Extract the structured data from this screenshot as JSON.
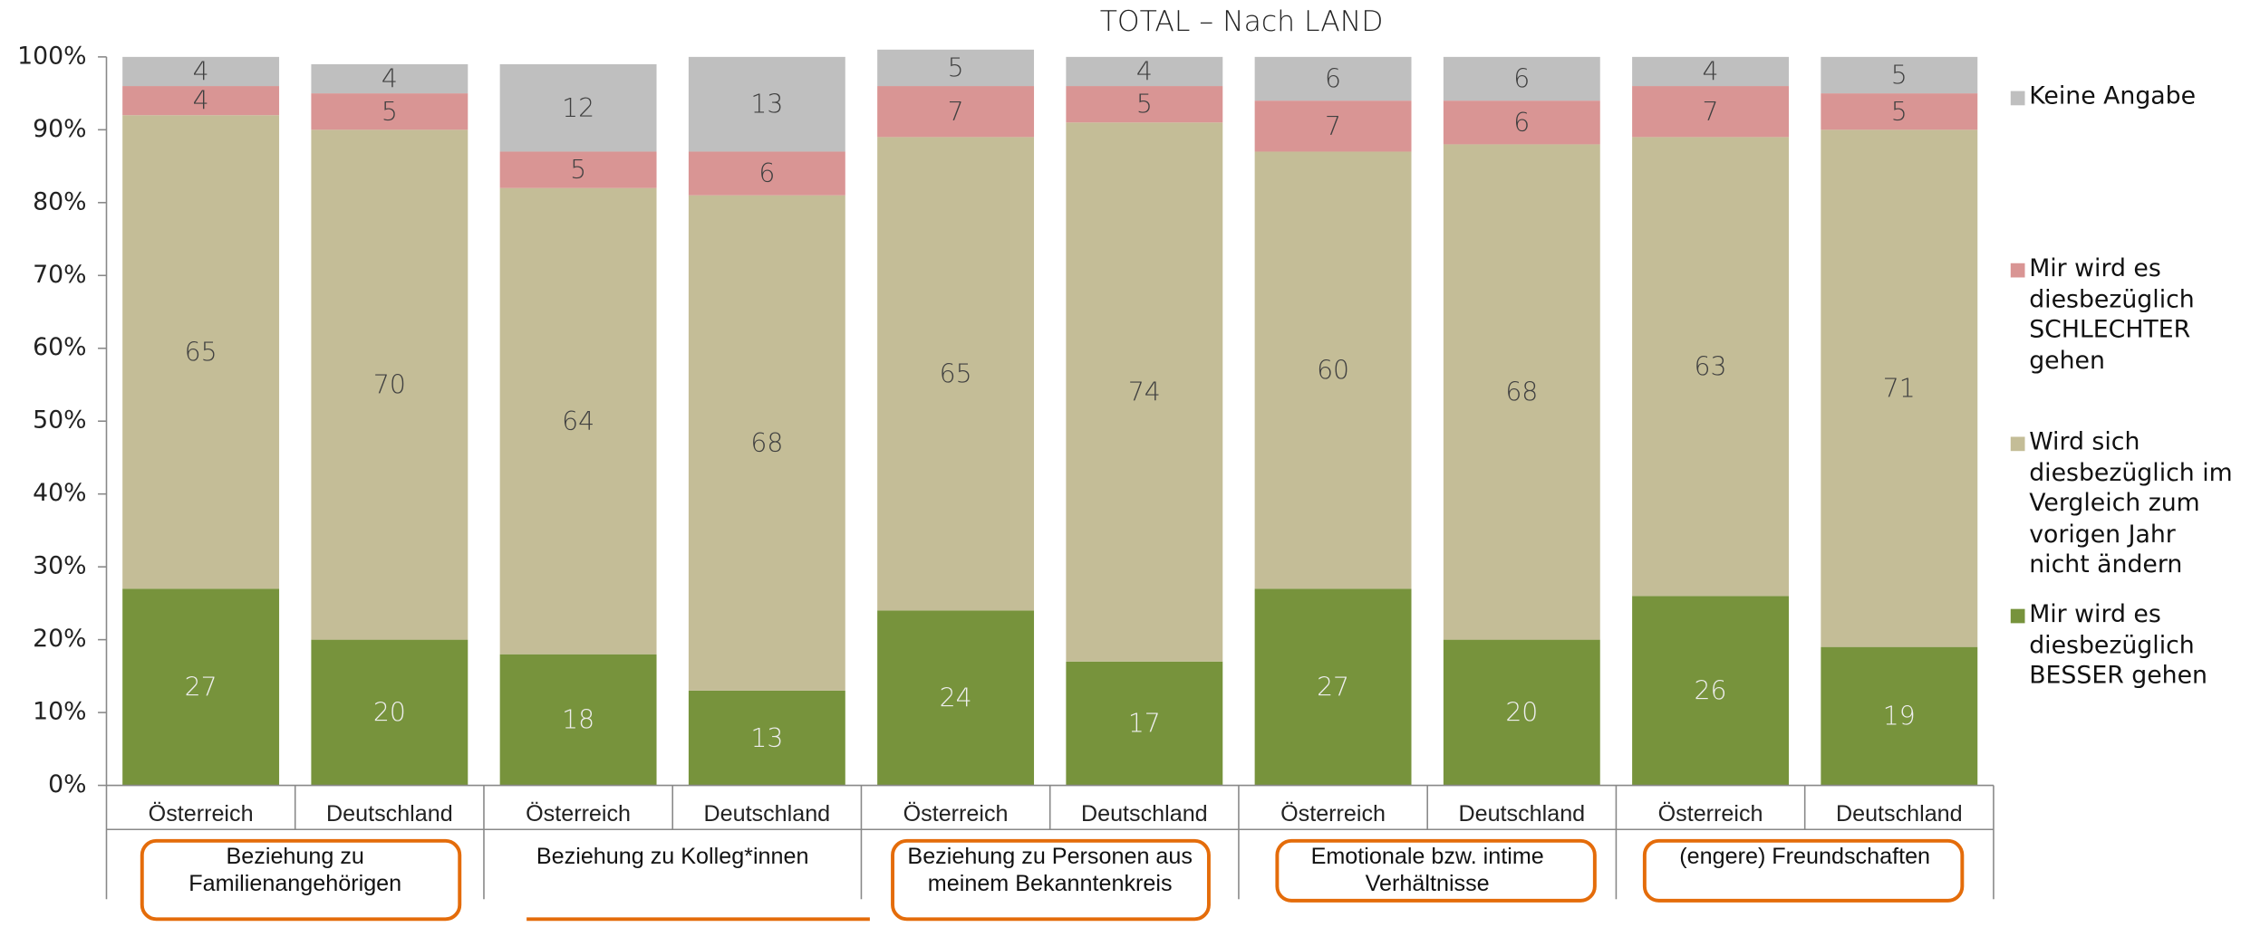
{
  "chart_data": {
    "type": "stacked_bar",
    "title": "TOTAL – Nach LAND",
    "categories": [
      "Österreich",
      "Deutschland",
      "Österreich",
      "Deutschland",
      "Österreich",
      "Deutschland",
      "Österreich",
      "Deutschland",
      "Österreich",
      "Deutschland"
    ],
    "groups": [
      "Beziehung zu Familienangehörigen",
      "Beziehung zu Kolleg*innen",
      "Beziehung zu Personen aus meinem Bekanntenkreis",
      "Emotionale bzw. intime Verhältnisse",
      "(engere) Freundschaften"
    ],
    "series": [
      {
        "name": "Mir wird es diesbezüglich BESSER gehen",
        "color": "#77933c",
        "values": [
          27,
          20,
          18,
          13,
          24,
          17,
          27,
          20,
          26,
          19
        ]
      },
      {
        "name": "Wird sich diesbezüglich im Vergleich zum vorigen Jahr nicht ändern",
        "color": "#c4bd97",
        "values": [
          65,
          70,
          64,
          68,
          65,
          74,
          60,
          68,
          63,
          71
        ]
      },
      {
        "name": "Mir wird es diesbezüglich SCHLECHTER gehen",
        "color": "#d99594",
        "values": [
          4,
          5,
          5,
          6,
          7,
          5,
          7,
          6,
          7,
          5
        ]
      },
      {
        "name": "Keine Angabe",
        "color": "#bfbfbf",
        "values": [
          4,
          4,
          12,
          13,
          5,
          4,
          6,
          6,
          4,
          5
        ]
      }
    ],
    "ylim": [
      0,
      100
    ],
    "yticks": [
      {
        "value": 0,
        "label": "0%"
      },
      {
        "value": 10,
        "label": "10%"
      },
      {
        "value": 20,
        "label": "20%"
      },
      {
        "value": 30,
        "label": "30%"
      },
      {
        "value": 40,
        "label": "40%"
      },
      {
        "value": 50,
        "label": "50%"
      },
      {
        "value": 60,
        "label": "60%"
      },
      {
        "value": 70,
        "label": "70%"
      },
      {
        "value": 80,
        "label": "80%"
      },
      {
        "value": 90,
        "label": "90%"
      },
      {
        "value": 100,
        "label": "100%"
      }
    ],
    "legend": "right"
  }
}
